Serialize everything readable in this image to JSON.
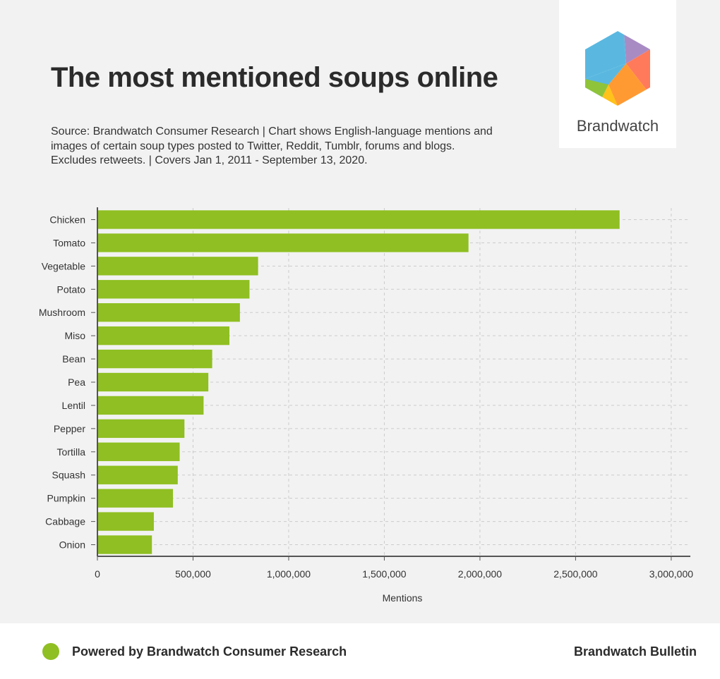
{
  "header": {
    "title": "The most mentioned soups online",
    "subtitle": "Source: Brandwatch Consumer Research | Chart shows English-language mentions and images of certain soup types posted to Twitter, Reddit, Tumblr, forums and blogs. Excludes retweets. | Covers Jan 1, 2011 - September 13, 2020."
  },
  "logo": {
    "text": "Brandwatch",
    "icon": "brandwatch-hexagon-logo"
  },
  "colors": {
    "bar": "#8fbf22",
    "grid": "#cccccc",
    "axis": "#555555",
    "background": "#f2f2f2"
  },
  "chart_data": {
    "type": "bar",
    "orientation": "horizontal",
    "categories": [
      "Chicken",
      "Tomato",
      "Vegetable",
      "Potato",
      "Mushroom",
      "Miso",
      "Bean",
      "Pea",
      "Lentil",
      "Pepper",
      "Tortilla",
      "Squash",
      "Pumpkin",
      "Cabbage",
      "Onion"
    ],
    "values": [
      2730000,
      1940000,
      840000,
      795000,
      745000,
      690000,
      600000,
      580000,
      555000,
      455000,
      430000,
      420000,
      395000,
      295000,
      285000
    ],
    "xlabel": "Mentions",
    "ylabel": "",
    "xlim": [
      0,
      3100000
    ],
    "xticks": [
      0,
      500000,
      1000000,
      1500000,
      2000000,
      2500000,
      3000000
    ],
    "xtick_labels": [
      "0",
      "500,000",
      "1,000,000",
      "1,500,000",
      "2,000,000",
      "2,500,000",
      "3,000,000"
    ],
    "grid": true,
    "legend": "none"
  },
  "footer": {
    "left": "Powered by Brandwatch Consumer Research",
    "right": "Brandwatch Bulletin"
  }
}
